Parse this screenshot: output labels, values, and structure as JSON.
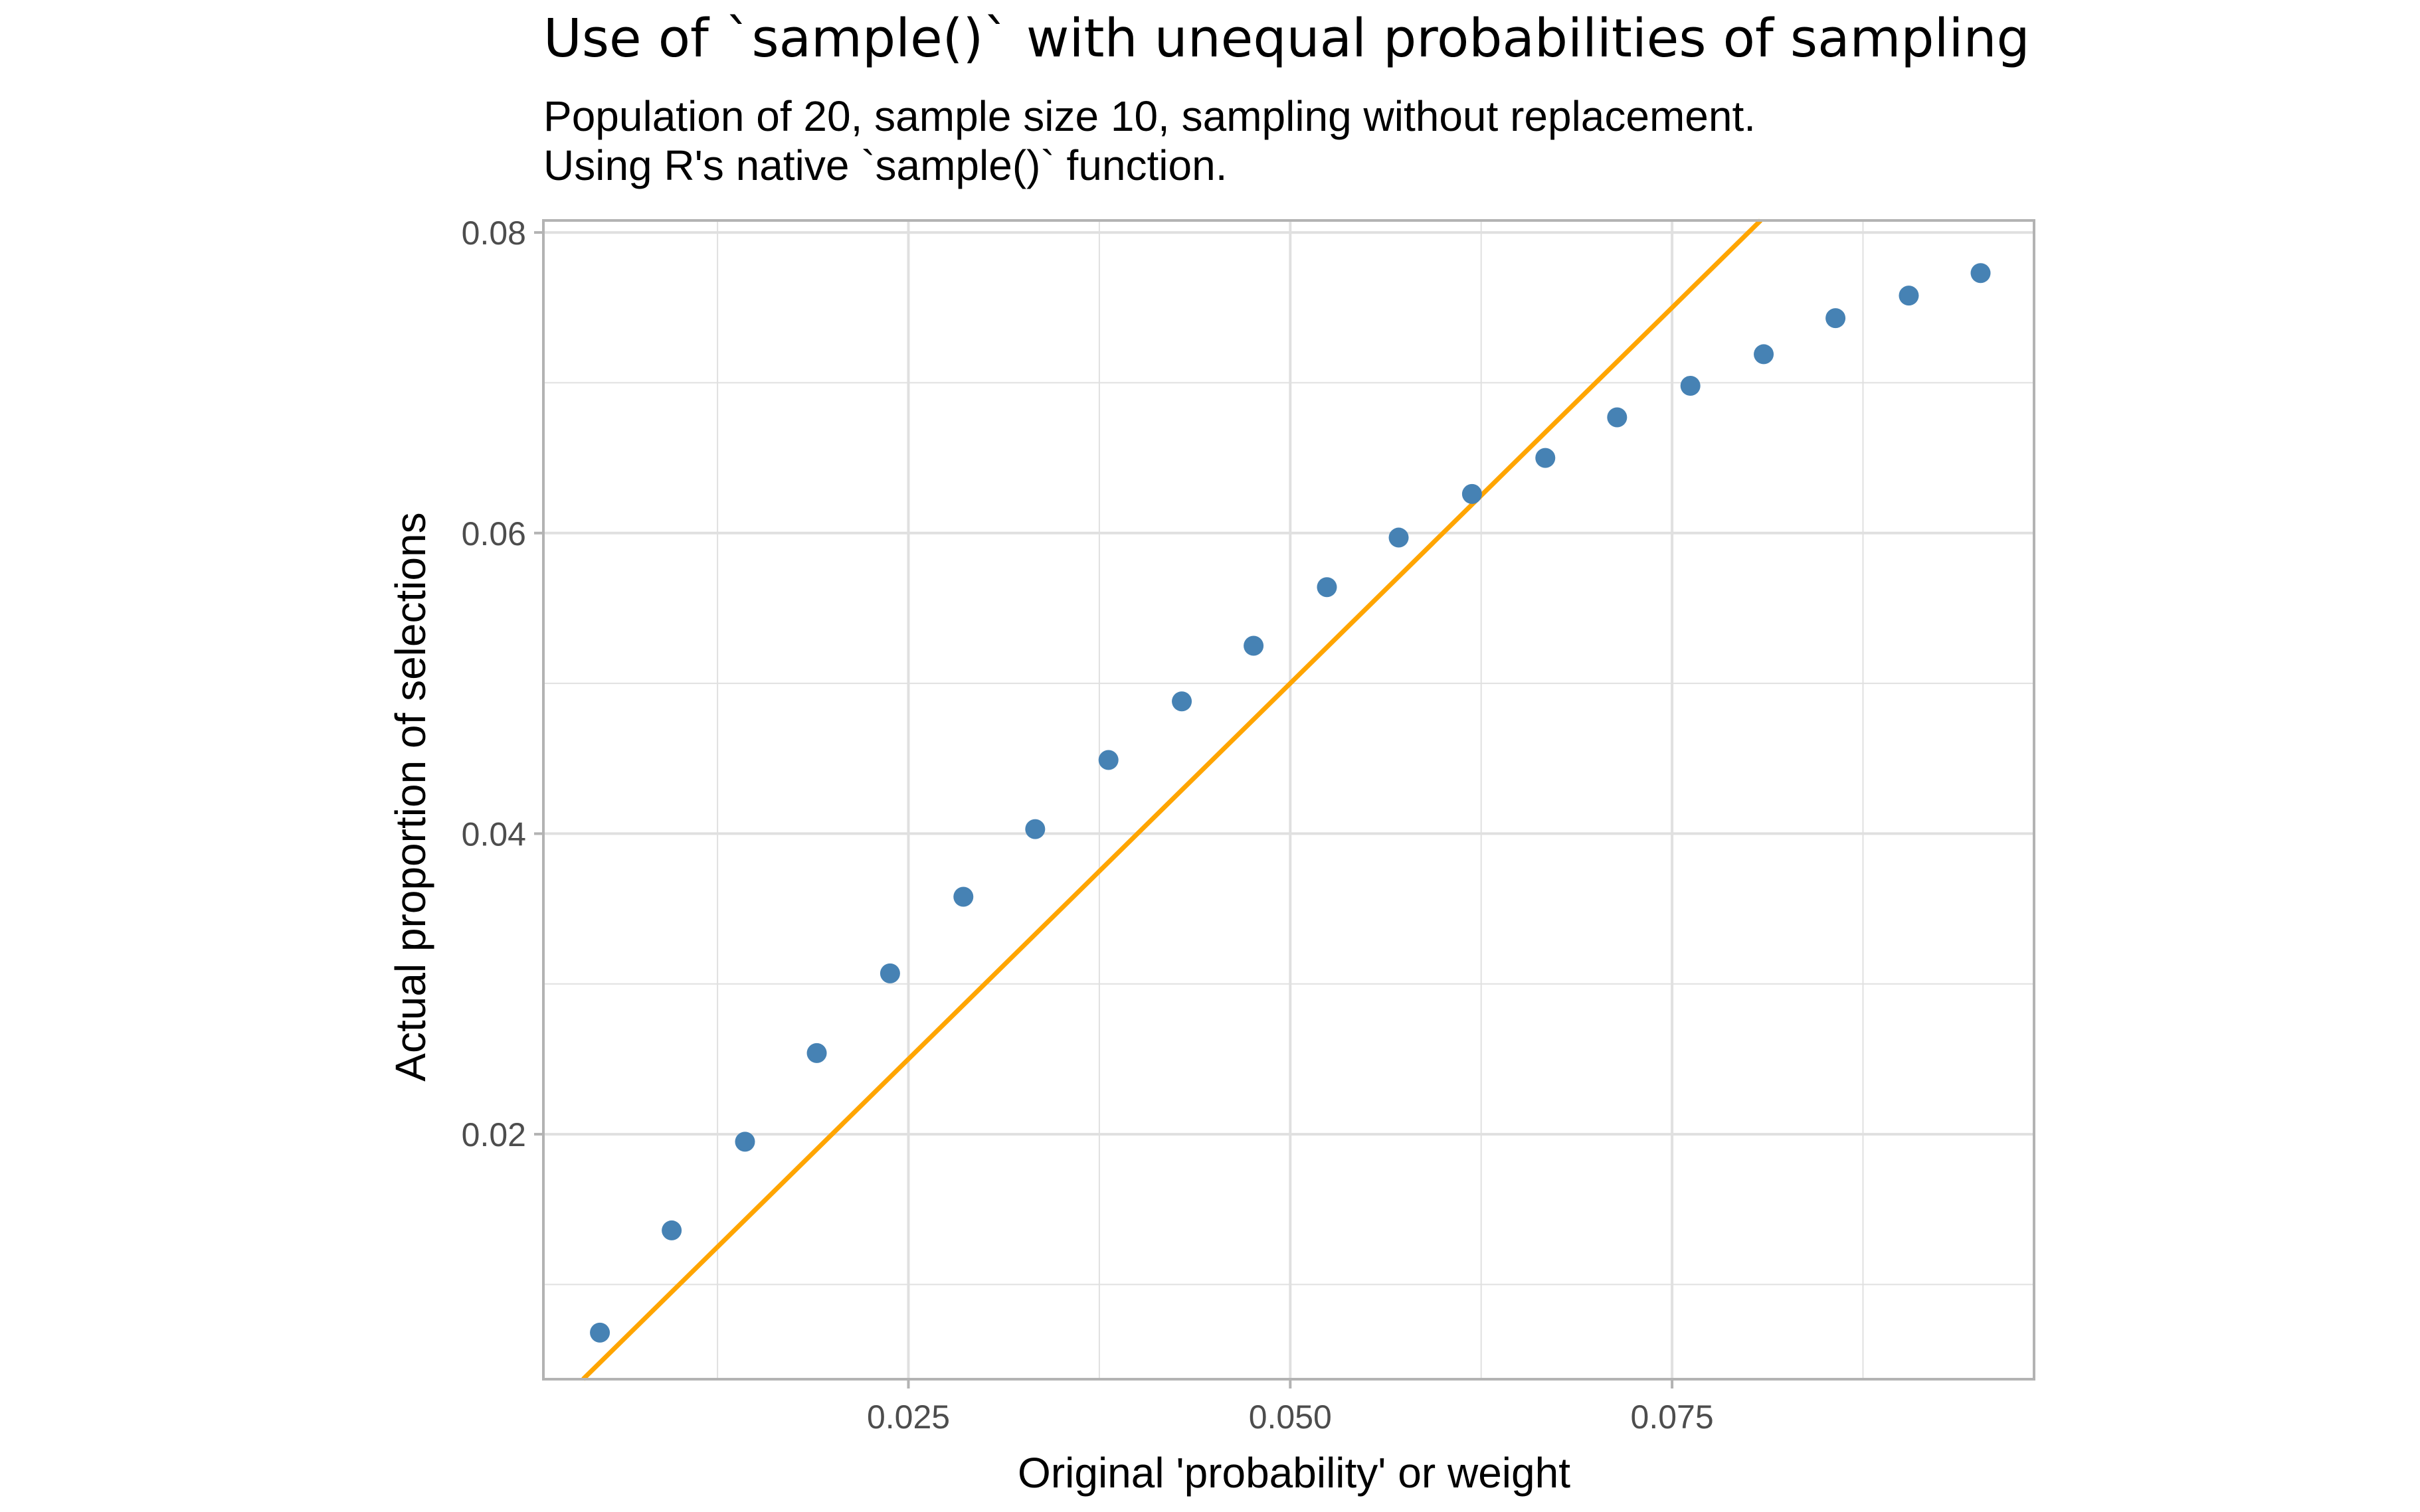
{
  "chart_data": {
    "type": "scatter",
    "title": "Use of `sample()` with unequal probabilities of sampling",
    "subtitle_lines": [
      "Population of 20, sample size 10, sampling without replacement.",
      "Using R's native `sample()` function."
    ],
    "xlabel": "Original 'probability' or weight",
    "ylabel": "Actual proportion of selections",
    "xlim": [
      0.0011,
      0.0987
    ],
    "ylim": [
      0.0037,
      0.0808
    ],
    "x_ticks": [
      0.025,
      0.05,
      0.075
    ],
    "x_tick_labels": [
      "0.025",
      "0.050",
      "0.075"
    ],
    "y_ticks": [
      0.02,
      0.04,
      0.06,
      0.08
    ],
    "y_tick_labels": [
      "0.02",
      "0.04",
      "0.06",
      "0.08"
    ],
    "grid": true,
    "points": {
      "x": [
        0.0048,
        0.0095,
        0.0143,
        0.019,
        0.0238,
        0.0286,
        0.0333,
        0.0381,
        0.0429,
        0.0476,
        0.0524,
        0.0571,
        0.0619,
        0.0667,
        0.0714,
        0.0762,
        0.081,
        0.0857,
        0.0905,
        0.0952
      ],
      "y": [
        0.0068,
        0.0136,
        0.0195,
        0.0254,
        0.0307,
        0.0358,
        0.0403,
        0.0449,
        0.0488,
        0.0525,
        0.0564,
        0.0597,
        0.0626,
        0.065,
        0.0677,
        0.0698,
        0.0719,
        0.0743,
        0.0758,
        0.0773
      ],
      "color": "#4682B4"
    },
    "reference_line": {
      "type": "y = x",
      "color": "#FFA500"
    },
    "colors": {
      "panel_border": "#B3B3B3",
      "grid": "#E0E0E0",
      "tick_text": "#4D4D4D"
    }
  }
}
